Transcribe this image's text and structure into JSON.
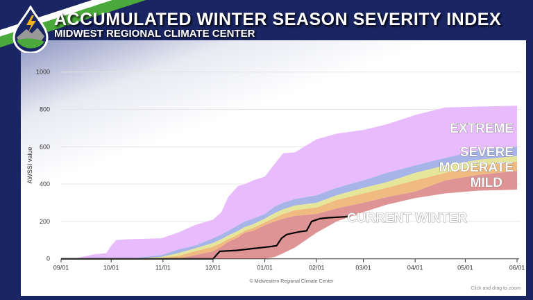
{
  "header": {
    "title": "ACCUMULATED WINTER SEASON SEVERITY INDEX",
    "subtitle": "MIDWEST REGIONAL CLIMATE CENTER"
  },
  "footer": {
    "credit": "© Midwestern Regional Climate Center",
    "zoom_hint": "Click and drag to zoom"
  },
  "chart_data": {
    "type": "area",
    "ylabel": "AWSSI value",
    "ylim": [
      0,
      1000
    ],
    "yticks": [
      0,
      200,
      400,
      600,
      800,
      1000
    ],
    "xticks": [
      {
        "label": "09/01",
        "day": 0
      },
      {
        "label": "10/01",
        "day": 30
      },
      {
        "label": "11/01",
        "day": 61
      },
      {
        "label": "12/01",
        "day": 91
      },
      {
        "label": "01/01",
        "day": 122
      },
      {
        "label": "02/01",
        "day": 153
      },
      {
        "label": "03/01",
        "day": 181
      },
      {
        "label": "04/01",
        "day": 212
      },
      {
        "label": "05/01",
        "day": 242
      },
      {
        "label": "06/01",
        "day": 273
      }
    ],
    "days": [
      0,
      10,
      20,
      27,
      30,
      33,
      40,
      60,
      70,
      80,
      91,
      96,
      100,
      106,
      110,
      115,
      122,
      128,
      133,
      140,
      153,
      165,
      181,
      195,
      212,
      230,
      250,
      273
    ],
    "boundaries": {
      "extreme_top": [
        2,
        5,
        25,
        30,
        70,
        100,
        105,
        110,
        140,
        180,
        210,
        250,
        330,
        390,
        400,
        420,
        440,
        510,
        565,
        570,
        640,
        670,
        690,
        720,
        770,
        810,
        815,
        820
      ],
      "severe_top": [
        0,
        0,
        0,
        0,
        0,
        0,
        0,
        20,
        50,
        70,
        110,
        130,
        150,
        180,
        200,
        215,
        240,
        280,
        300,
        320,
        340,
        380,
        420,
        460,
        500,
        540,
        580,
        600
      ],
      "moderate_top": [
        0,
        0,
        0,
        0,
        0,
        0,
        0,
        10,
        30,
        55,
        85,
        105,
        125,
        150,
        170,
        185,
        215,
        245,
        265,
        285,
        300,
        340,
        380,
        410,
        460,
        500,
        530,
        550
      ],
      "mild_top": [
        0,
        0,
        0,
        0,
        0,
        0,
        0,
        5,
        15,
        40,
        65,
        85,
        105,
        130,
        150,
        165,
        195,
        220,
        240,
        260,
        275,
        315,
        350,
        380,
        420,
        460,
        500,
        520
      ],
      "red_top": [
        0,
        0,
        0,
        0,
        0,
        0,
        0,
        0,
        0,
        20,
        40,
        65,
        90,
        115,
        140,
        150,
        180,
        200,
        215,
        230,
        240,
        270,
        300,
        330,
        360,
        420,
        450,
        470
      ],
      "red_bottom": [
        0,
        0,
        0,
        0,
        0,
        0,
        0,
        0,
        0,
        0,
        0,
        0,
        0,
        0,
        0,
        0,
        0,
        10,
        30,
        60,
        140,
        200,
        250,
        290,
        325,
        350,
        365,
        370
      ]
    },
    "series": [
      {
        "name": "EXTREME",
        "color": "#e8bcfc",
        "from": "severe_top",
        "to": "extreme_top"
      },
      {
        "name": "SEVERE",
        "color": "#a6b4e8",
        "from": "moderate_top",
        "to": "severe_top"
      },
      {
        "name": "MODERATE",
        "color": "#e6e69a",
        "from": "mild_top",
        "to": "moderate_top"
      },
      {
        "name": "MILD",
        "color": "#efbb80",
        "from": "red_top",
        "to": "mild_top"
      },
      {
        "name": "",
        "color": "#de9494",
        "from": "red_bottom",
        "to": "red_top"
      }
    ],
    "current": {
      "name": "CURRENT WINTER",
      "days": [
        0,
        91,
        93,
        95,
        105,
        110,
        115,
        120,
        125,
        129,
        132,
        135,
        140,
        143,
        147,
        150,
        155,
        160,
        170,
        173
      ],
      "values": [
        0,
        0,
        20,
        40,
        45,
        50,
        55,
        60,
        65,
        70,
        110,
        130,
        140,
        145,
        150,
        200,
        215,
        220,
        225,
        230
      ]
    },
    "labels": {
      "extreme": "EXTREME",
      "severe": "SEVERE",
      "moderate": "MODERATE",
      "mild": "MILD"
    }
  }
}
